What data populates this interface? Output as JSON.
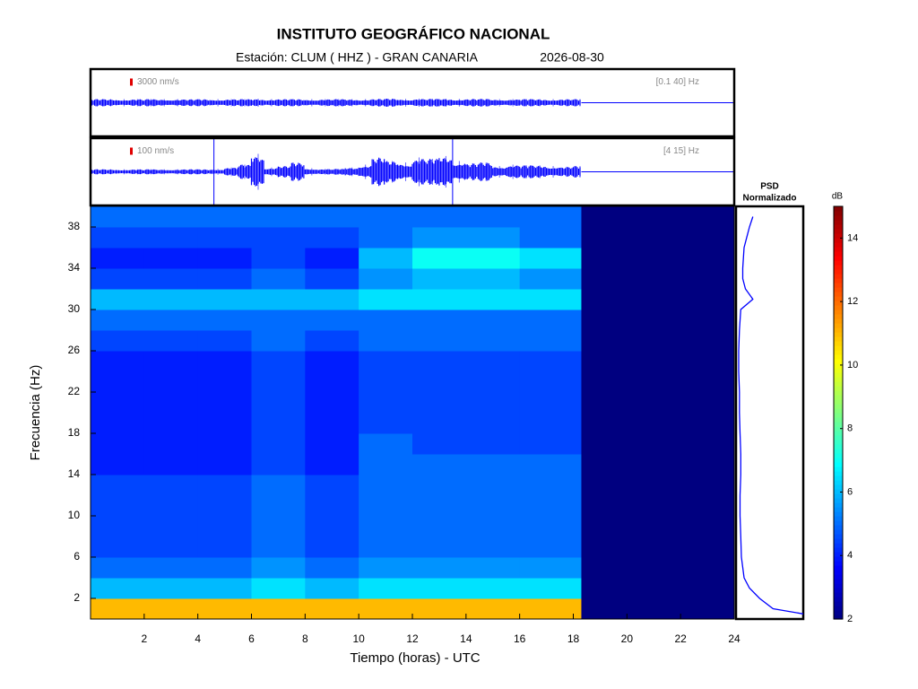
{
  "header": {
    "title": "INSTITUTO GEOGRÁFICO NACIONAL",
    "station": "Estación:  CLUM ( HHZ ) - GRAN CANARIA",
    "date": "2026-08-30"
  },
  "chart_data": [
    {
      "type": "waveform",
      "scale": {
        "value": 3000,
        "label": "3000 nm/s"
      },
      "band": "[0.1 40] Hz",
      "color": "#0000ff",
      "xlim": [
        0,
        24
      ],
      "data_end": 18.3,
      "x": [
        0,
        0.5,
        1,
        1.5,
        2,
        2.5,
        3,
        3.5,
        4,
        4.5,
        5,
        5.5,
        6,
        6.5,
        7,
        7.5,
        8,
        8.5,
        9,
        9.5,
        10,
        10.5,
        11,
        11.5,
        12,
        12.5,
        13,
        13.5,
        14,
        14.5,
        15,
        15.5,
        16,
        16.5,
        17,
        17.5,
        18
      ],
      "values": [
        1500,
        1500,
        1500,
        1500,
        1500,
        1500,
        1500,
        1400,
        1500,
        1500,
        1500,
        1500,
        1700,
        1500,
        1500,
        1500,
        1500,
        1500,
        1500,
        1500,
        1500,
        1600,
        1700,
        1600,
        1700,
        1600,
        1700,
        1600,
        1600,
        1600,
        1500,
        1500,
        1500,
        1500,
        1500,
        1500,
        1500
      ],
      "spikes": []
    },
    {
      "type": "waveform",
      "scale": {
        "value": 100,
        "label": "100 nm/s"
      },
      "band": "[4 15] Hz",
      "color": "#0000ff",
      "xlim": [
        0,
        24
      ],
      "data_end": 18.3,
      "x": [
        0,
        0.5,
        1,
        1.5,
        2,
        2.5,
        3,
        3.5,
        4,
        4.5,
        5,
        5.5,
        6,
        6.5,
        7,
        7.5,
        8,
        8.5,
        9,
        9.5,
        10,
        10.5,
        11,
        11.5,
        12,
        12.5,
        13,
        13.5,
        14,
        14.5,
        15,
        15.5,
        16,
        16.5,
        17,
        17.5,
        18
      ],
      "values": [
        35,
        35,
        35,
        35,
        35,
        35,
        35,
        35,
        35,
        40,
        60,
        100,
        250,
        60,
        80,
        130,
        50,
        40,
        40,
        60,
        100,
        200,
        150,
        130,
        200,
        180,
        220,
        150,
        120,
        130,
        80,
        100,
        90,
        90,
        80,
        70,
        80
      ],
      "spikes": [
        4.6,
        13.5
      ]
    },
    {
      "type": "heatmap",
      "colormap": "jet",
      "xlabel": "Tiempo (horas) - UTC",
      "ylabel": "Frecuencia  (Hz)",
      "xlim": [
        0,
        24
      ],
      "ylim": [
        0,
        40
      ],
      "xticks": [
        2,
        4,
        6,
        8,
        10,
        12,
        14,
        16,
        18,
        20,
        22,
        24
      ],
      "yticks": [
        2,
        6,
        10,
        14,
        18,
        22,
        26,
        30,
        34,
        38
      ],
      "x_edges": [
        0,
        2,
        4,
        6,
        8,
        10,
        12,
        14,
        16,
        18.3,
        24
      ],
      "y_edges": [
        0,
        2,
        4,
        6,
        8,
        10,
        12,
        14,
        16,
        18,
        20,
        22,
        24,
        26,
        28,
        30,
        32,
        34,
        36,
        38,
        40
      ],
      "z": [
        [
          11,
          11,
          11,
          11,
          11,
          11,
          11,
          11,
          11,
          2
        ],
        [
          6,
          6,
          6,
          6.5,
          6,
          6.5,
          6.5,
          6.5,
          6.5,
          2
        ],
        [
          5,
          5,
          5,
          5.5,
          5,
          5.5,
          5.5,
          5.5,
          5.5,
          2
        ],
        [
          4.5,
          4.5,
          4.5,
          5,
          4.5,
          5,
          5,
          5,
          5,
          2
        ],
        [
          4.5,
          4.5,
          4.5,
          5,
          4.5,
          5,
          5,
          5,
          5,
          2
        ],
        [
          4.5,
          4.5,
          4.5,
          5,
          4.5,
          5,
          5,
          5,
          5,
          2
        ],
        [
          4.5,
          4.5,
          4.5,
          5,
          4.5,
          5,
          5,
          5,
          5,
          2
        ],
        [
          4,
          4,
          4,
          4.5,
          4,
          5,
          5,
          5,
          5,
          2
        ],
        [
          4,
          4,
          4,
          4.5,
          4,
          5,
          4.5,
          4.5,
          4.5,
          2
        ],
        [
          4,
          4,
          4,
          4.5,
          4,
          4.5,
          4.5,
          4.5,
          4.5,
          2
        ],
        [
          4,
          4,
          4,
          4.5,
          4,
          4.5,
          4.5,
          4.5,
          4.5,
          2
        ],
        [
          4,
          4,
          4,
          4.5,
          4,
          4.5,
          4.5,
          4.5,
          4.5,
          2
        ],
        [
          4,
          4,
          4,
          4.5,
          4,
          4.5,
          4.5,
          4.5,
          4.5,
          2
        ],
        [
          4.5,
          4.5,
          4.5,
          5,
          4.5,
          5,
          5,
          5,
          5,
          2
        ],
        [
          5,
          5,
          5,
          5,
          5,
          5,
          5,
          5,
          5,
          2
        ],
        [
          6,
          6,
          6,
          6,
          6,
          6.5,
          6.5,
          6.5,
          6.5,
          2
        ],
        [
          4.5,
          4.5,
          4.5,
          5,
          4.5,
          5.5,
          6,
          6,
          5.5,
          2
        ],
        [
          4,
          4,
          4,
          4.5,
          4,
          6,
          7,
          7,
          6.5,
          2
        ],
        [
          4.5,
          4.5,
          4.5,
          4.5,
          4.5,
          5,
          5.5,
          5.5,
          5,
          2
        ],
        [
          5,
          5,
          5,
          5,
          5,
          5,
          5,
          5,
          5,
          2
        ]
      ],
      "clim": [
        2,
        15
      ],
      "cticks": [
        2,
        4,
        6,
        8,
        10,
        12,
        14
      ],
      "colorbar_label": "dB"
    },
    {
      "type": "psd",
      "title_lines": [
        "PSD",
        "Normalizado"
      ],
      "color": "#0000ff",
      "xlim": [
        0,
        1
      ],
      "ylim": [
        0,
        40
      ],
      "y": [
        0.5,
        1,
        2,
        3,
        4,
        6,
        8,
        10,
        12,
        14,
        16,
        18,
        20,
        22,
        24,
        26,
        28,
        30,
        31,
        32,
        33,
        34,
        36,
        38,
        39
      ],
      "values": [
        1.0,
        0.55,
        0.35,
        0.2,
        0.12,
        0.08,
        0.07,
        0.06,
        0.06,
        0.07,
        0.07,
        0.06,
        0.05,
        0.05,
        0.04,
        0.04,
        0.05,
        0.07,
        0.25,
        0.14,
        0.1,
        0.1,
        0.12,
        0.2,
        0.25
      ]
    }
  ]
}
